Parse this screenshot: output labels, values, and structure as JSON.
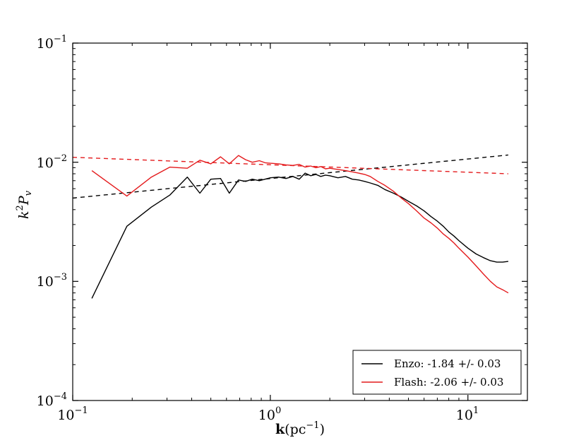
{
  "chart_data": {
    "type": "line",
    "scale": {
      "x": "log",
      "y": "log"
    },
    "xlim": [
      0.1,
      20
    ],
    "ylim": [
      0.0001,
      0.1
    ],
    "xlabel": {
      "bold": "k",
      "rest": "(pc",
      "exp": "−1",
      "close": ")"
    },
    "ylabel": {
      "base": "k",
      "exp": "2",
      "mid": "P",
      "sub": "v"
    },
    "xticks": [
      {
        "base": "10",
        "exp": "−1",
        "value": 0.1
      },
      {
        "base": "10",
        "exp": "0",
        "value": 1
      },
      {
        "base": "10",
        "exp": "1",
        "value": 10
      }
    ],
    "yticks": [
      {
        "base": "10",
        "exp": "−4",
        "value": 0.0001
      },
      {
        "base": "10",
        "exp": "−3",
        "value": 0.001
      },
      {
        "base": "10",
        "exp": "−2",
        "value": 0.01
      },
      {
        "base": "10",
        "exp": "−1",
        "value": 0.1
      }
    ],
    "legend_position": "lower-right",
    "series": [
      {
        "name": "Enzo: -1.84 +/- 0.03",
        "color": "#000000",
        "x": [
          0.125,
          0.188,
          0.25,
          0.31,
          0.38,
          0.44,
          0.5,
          0.56,
          0.62,
          0.69,
          0.75,
          0.81,
          0.88,
          0.94,
          1.0,
          1.1,
          1.2,
          1.3,
          1.4,
          1.5,
          1.6,
          1.7,
          1.8,
          1.9,
          2.0,
          2.2,
          2.4,
          2.6,
          2.8,
          3.0,
          3.2,
          3.5,
          3.8,
          4.2,
          4.6,
          5.0,
          5.5,
          6.0,
          6.5,
          7.0,
          7.5,
          8.0,
          8.5,
          9.0,
          10.0,
          11.0,
          12.0,
          13.0,
          14.0,
          15.0,
          16.0
        ],
        "y": [
          0.00072,
          0.0029,
          0.0042,
          0.0053,
          0.0075,
          0.0055,
          0.0072,
          0.0073,
          0.0055,
          0.0071,
          0.0069,
          0.0072,
          0.007,
          0.0072,
          0.0074,
          0.0075,
          0.0073,
          0.0076,
          0.0072,
          0.0081,
          0.0077,
          0.0079,
          0.0076,
          0.0078,
          0.0077,
          0.0074,
          0.0076,
          0.0072,
          0.0071,
          0.0069,
          0.0067,
          0.0064,
          0.0059,
          0.0055,
          0.0051,
          0.0047,
          0.0043,
          0.0039,
          0.0035,
          0.0032,
          0.0029,
          0.0026,
          0.0024,
          0.0022,
          0.0019,
          0.0017,
          0.00158,
          0.00149,
          0.00145,
          0.00145,
          0.00147
        ]
      },
      {
        "name": "Flash: -2.06 +/- 0.03",
        "color": "#e41a1c",
        "x": [
          0.125,
          0.188,
          0.25,
          0.31,
          0.38,
          0.44,
          0.5,
          0.56,
          0.62,
          0.69,
          0.75,
          0.81,
          0.88,
          0.94,
          1.0,
          1.1,
          1.2,
          1.3,
          1.4,
          1.5,
          1.6,
          1.7,
          1.8,
          1.9,
          2.0,
          2.2,
          2.4,
          2.6,
          2.8,
          3.0,
          3.2,
          3.5,
          3.8,
          4.2,
          4.6,
          5.0,
          5.5,
          6.0,
          6.5,
          7.0,
          7.5,
          8.0,
          8.5,
          9.0,
          10.0,
          11.0,
          12.0,
          13.0,
          14.0,
          15.0,
          16.0
        ],
        "y": [
          0.0085,
          0.0052,
          0.0075,
          0.0091,
          0.0089,
          0.0104,
          0.0097,
          0.0111,
          0.0097,
          0.0114,
          0.0105,
          0.01,
          0.0103,
          0.0099,
          0.0098,
          0.0097,
          0.0095,
          0.0094,
          0.0096,
          0.0091,
          0.0093,
          0.009,
          0.0092,
          0.0088,
          0.0089,
          0.0087,
          0.0085,
          0.0083,
          0.0081,
          0.0079,
          0.0076,
          0.0069,
          0.0064,
          0.0057,
          0.005,
          0.0045,
          0.0039,
          0.0034,
          0.0031,
          0.0028,
          0.0025,
          0.0023,
          0.0021,
          0.0019,
          0.0016,
          0.00135,
          0.00115,
          0.001,
          0.0009,
          0.00085,
          0.0008
        ]
      }
    ],
    "fit_lines": [
      {
        "name": "Enzo fit",
        "color": "#000000",
        "dashed": true,
        "x": [
          0.1,
          16.0
        ],
        "y": [
          0.005,
          0.0115
        ]
      },
      {
        "name": "Flash fit",
        "color": "#e41a1c",
        "dashed": true,
        "x": [
          0.1,
          16.0
        ],
        "y": [
          0.011,
          0.008
        ]
      }
    ]
  }
}
